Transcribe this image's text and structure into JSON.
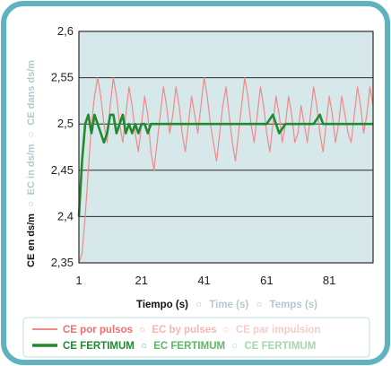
{
  "chart_data": {
    "type": "line",
    "ylim": [
      2.35,
      2.6
    ],
    "xlim": [
      1,
      95
    ],
    "y_ticks": [
      "2,6",
      "2,55",
      "2,5",
      "2,45",
      "2,4",
      "2,35"
    ],
    "y_tick_values": [
      2.6,
      2.55,
      2.5,
      2.45,
      2.4,
      2.35
    ],
    "x_ticks": [
      "1",
      "21",
      "41",
      "61",
      "81"
    ],
    "x_tick_values": [
      1,
      21,
      41,
      61,
      81
    ],
    "grid": "horizontal",
    "ylabel": {
      "es": "CE en ds/m",
      "sep1": "○",
      "en": "EC in ds/m",
      "sep2": "○",
      "fr": "CE dans ds/m"
    },
    "xlabel": {
      "es": "Tiempo (s)",
      "sep1": "○",
      "en": "Time (s)",
      "sep2": "○",
      "fr": "Temps (s)"
    },
    "legend": [
      {
        "color": "#f08a8a",
        "es": "CE por pulsos",
        "sep1": "○",
        "en": "EC by pulses",
        "sep2": "○",
        "fr": "CE par impulsion"
      },
      {
        "color": "#1f8a2e",
        "es": "CE FERTIMUM",
        "sep1": "○",
        "en": "EC FERTIMUM",
        "sep2": "○",
        "fr": "CE FERTIMUM"
      }
    ],
    "series": [
      {
        "color": "#f08a8a",
        "x": [
          1,
          2,
          3,
          4,
          5,
          6,
          7,
          8,
          9,
          10,
          11,
          12,
          13,
          14,
          15,
          16,
          17,
          18,
          19,
          20,
          21,
          22,
          23,
          24,
          25,
          26,
          27,
          28,
          29,
          30,
          31,
          32,
          33,
          34,
          35,
          36,
          37,
          38,
          39,
          40,
          41,
          42,
          43,
          44,
          45,
          46,
          47,
          48,
          49,
          50,
          51,
          52,
          53,
          54,
          55,
          56,
          57,
          58,
          59,
          60,
          61,
          62,
          63,
          64,
          65,
          66,
          67,
          68,
          69,
          70,
          71,
          72,
          73,
          74,
          75,
          76,
          77,
          78,
          79,
          80,
          81,
          82,
          83,
          84,
          85,
          86,
          87,
          88,
          89,
          90,
          91,
          92,
          93,
          94,
          95
        ],
        "values": [
          2.35,
          2.36,
          2.4,
          2.45,
          2.5,
          2.53,
          2.55,
          2.53,
          2.5,
          2.48,
          2.52,
          2.55,
          2.53,
          2.5,
          2.48,
          2.51,
          2.54,
          2.52,
          2.49,
          2.47,
          2.5,
          2.53,
          2.51,
          2.47,
          2.45,
          2.48,
          2.51,
          2.54,
          2.52,
          2.49,
          2.51,
          2.54,
          2.52,
          2.49,
          2.47,
          2.5,
          2.53,
          2.51,
          2.49,
          2.52,
          2.55,
          2.53,
          2.5,
          2.48,
          2.46,
          2.49,
          2.52,
          2.54,
          2.51,
          2.48,
          2.46,
          2.49,
          2.52,
          2.55,
          2.53,
          2.5,
          2.48,
          2.51,
          2.54,
          2.52,
          2.49,
          2.47,
          2.5,
          2.53,
          2.51,
          2.48,
          2.5,
          2.53,
          2.51,
          2.48,
          2.49,
          2.52,
          2.5,
          2.48,
          2.51,
          2.54,
          2.52,
          2.49,
          2.47,
          2.5,
          2.53,
          2.51,
          2.48,
          2.5,
          2.53,
          2.51,
          2.49,
          2.48,
          2.51,
          2.54,
          2.52,
          2.49,
          2.51,
          2.54,
          2.52
        ]
      },
      {
        "color": "#1f8a2e",
        "x": [
          1,
          2,
          3,
          4,
          5,
          6,
          7,
          8,
          9,
          10,
          11,
          12,
          13,
          14,
          15,
          16,
          17,
          18,
          19,
          20,
          21,
          22,
          23,
          24,
          25,
          26,
          27,
          28,
          29,
          30,
          31,
          32,
          33,
          34,
          35,
          36,
          37,
          38,
          39,
          40,
          41,
          42,
          43,
          44,
          45,
          46,
          47,
          48,
          49,
          50,
          51,
          52,
          53,
          54,
          55,
          56,
          57,
          58,
          59,
          60,
          61,
          62,
          63,
          64,
          65,
          66,
          67,
          68,
          69,
          70,
          71,
          72,
          73,
          74,
          75,
          76,
          77,
          78,
          79,
          80,
          81,
          82,
          83,
          84,
          85,
          86,
          87,
          88,
          89,
          90,
          91,
          92,
          93,
          94,
          95
        ],
        "values": [
          2.4,
          2.46,
          2.5,
          2.51,
          2.49,
          2.51,
          2.5,
          2.49,
          2.48,
          2.49,
          2.51,
          2.51,
          2.49,
          2.5,
          2.51,
          2.49,
          2.5,
          2.49,
          2.5,
          2.49,
          2.5,
          2.5,
          2.49,
          2.5,
          2.5,
          2.5,
          2.5,
          2.5,
          2.5,
          2.5,
          2.5,
          2.5,
          2.5,
          2.5,
          2.5,
          2.5,
          2.5,
          2.5,
          2.5,
          2.5,
          2.5,
          2.5,
          2.5,
          2.5,
          2.5,
          2.5,
          2.5,
          2.5,
          2.5,
          2.5,
          2.5,
          2.5,
          2.5,
          2.5,
          2.5,
          2.5,
          2.5,
          2.5,
          2.5,
          2.5,
          2.5,
          2.505,
          2.51,
          2.5,
          2.49,
          2.495,
          2.5,
          2.5,
          2.5,
          2.5,
          2.5,
          2.5,
          2.5,
          2.5,
          2.5,
          2.5,
          2.505,
          2.51,
          2.5,
          2.5,
          2.5,
          2.5,
          2.5,
          2.5,
          2.5,
          2.5,
          2.5,
          2.5,
          2.5,
          2.5,
          2.5,
          2.5,
          2.5,
          2.5,
          2.5
        ]
      }
    ]
  },
  "colors": {
    "frame": "#5fb3c0",
    "plot_bg": "#d6e8e9",
    "grid": "#2b2b2b",
    "label_muted": "#b4c9cd"
  }
}
